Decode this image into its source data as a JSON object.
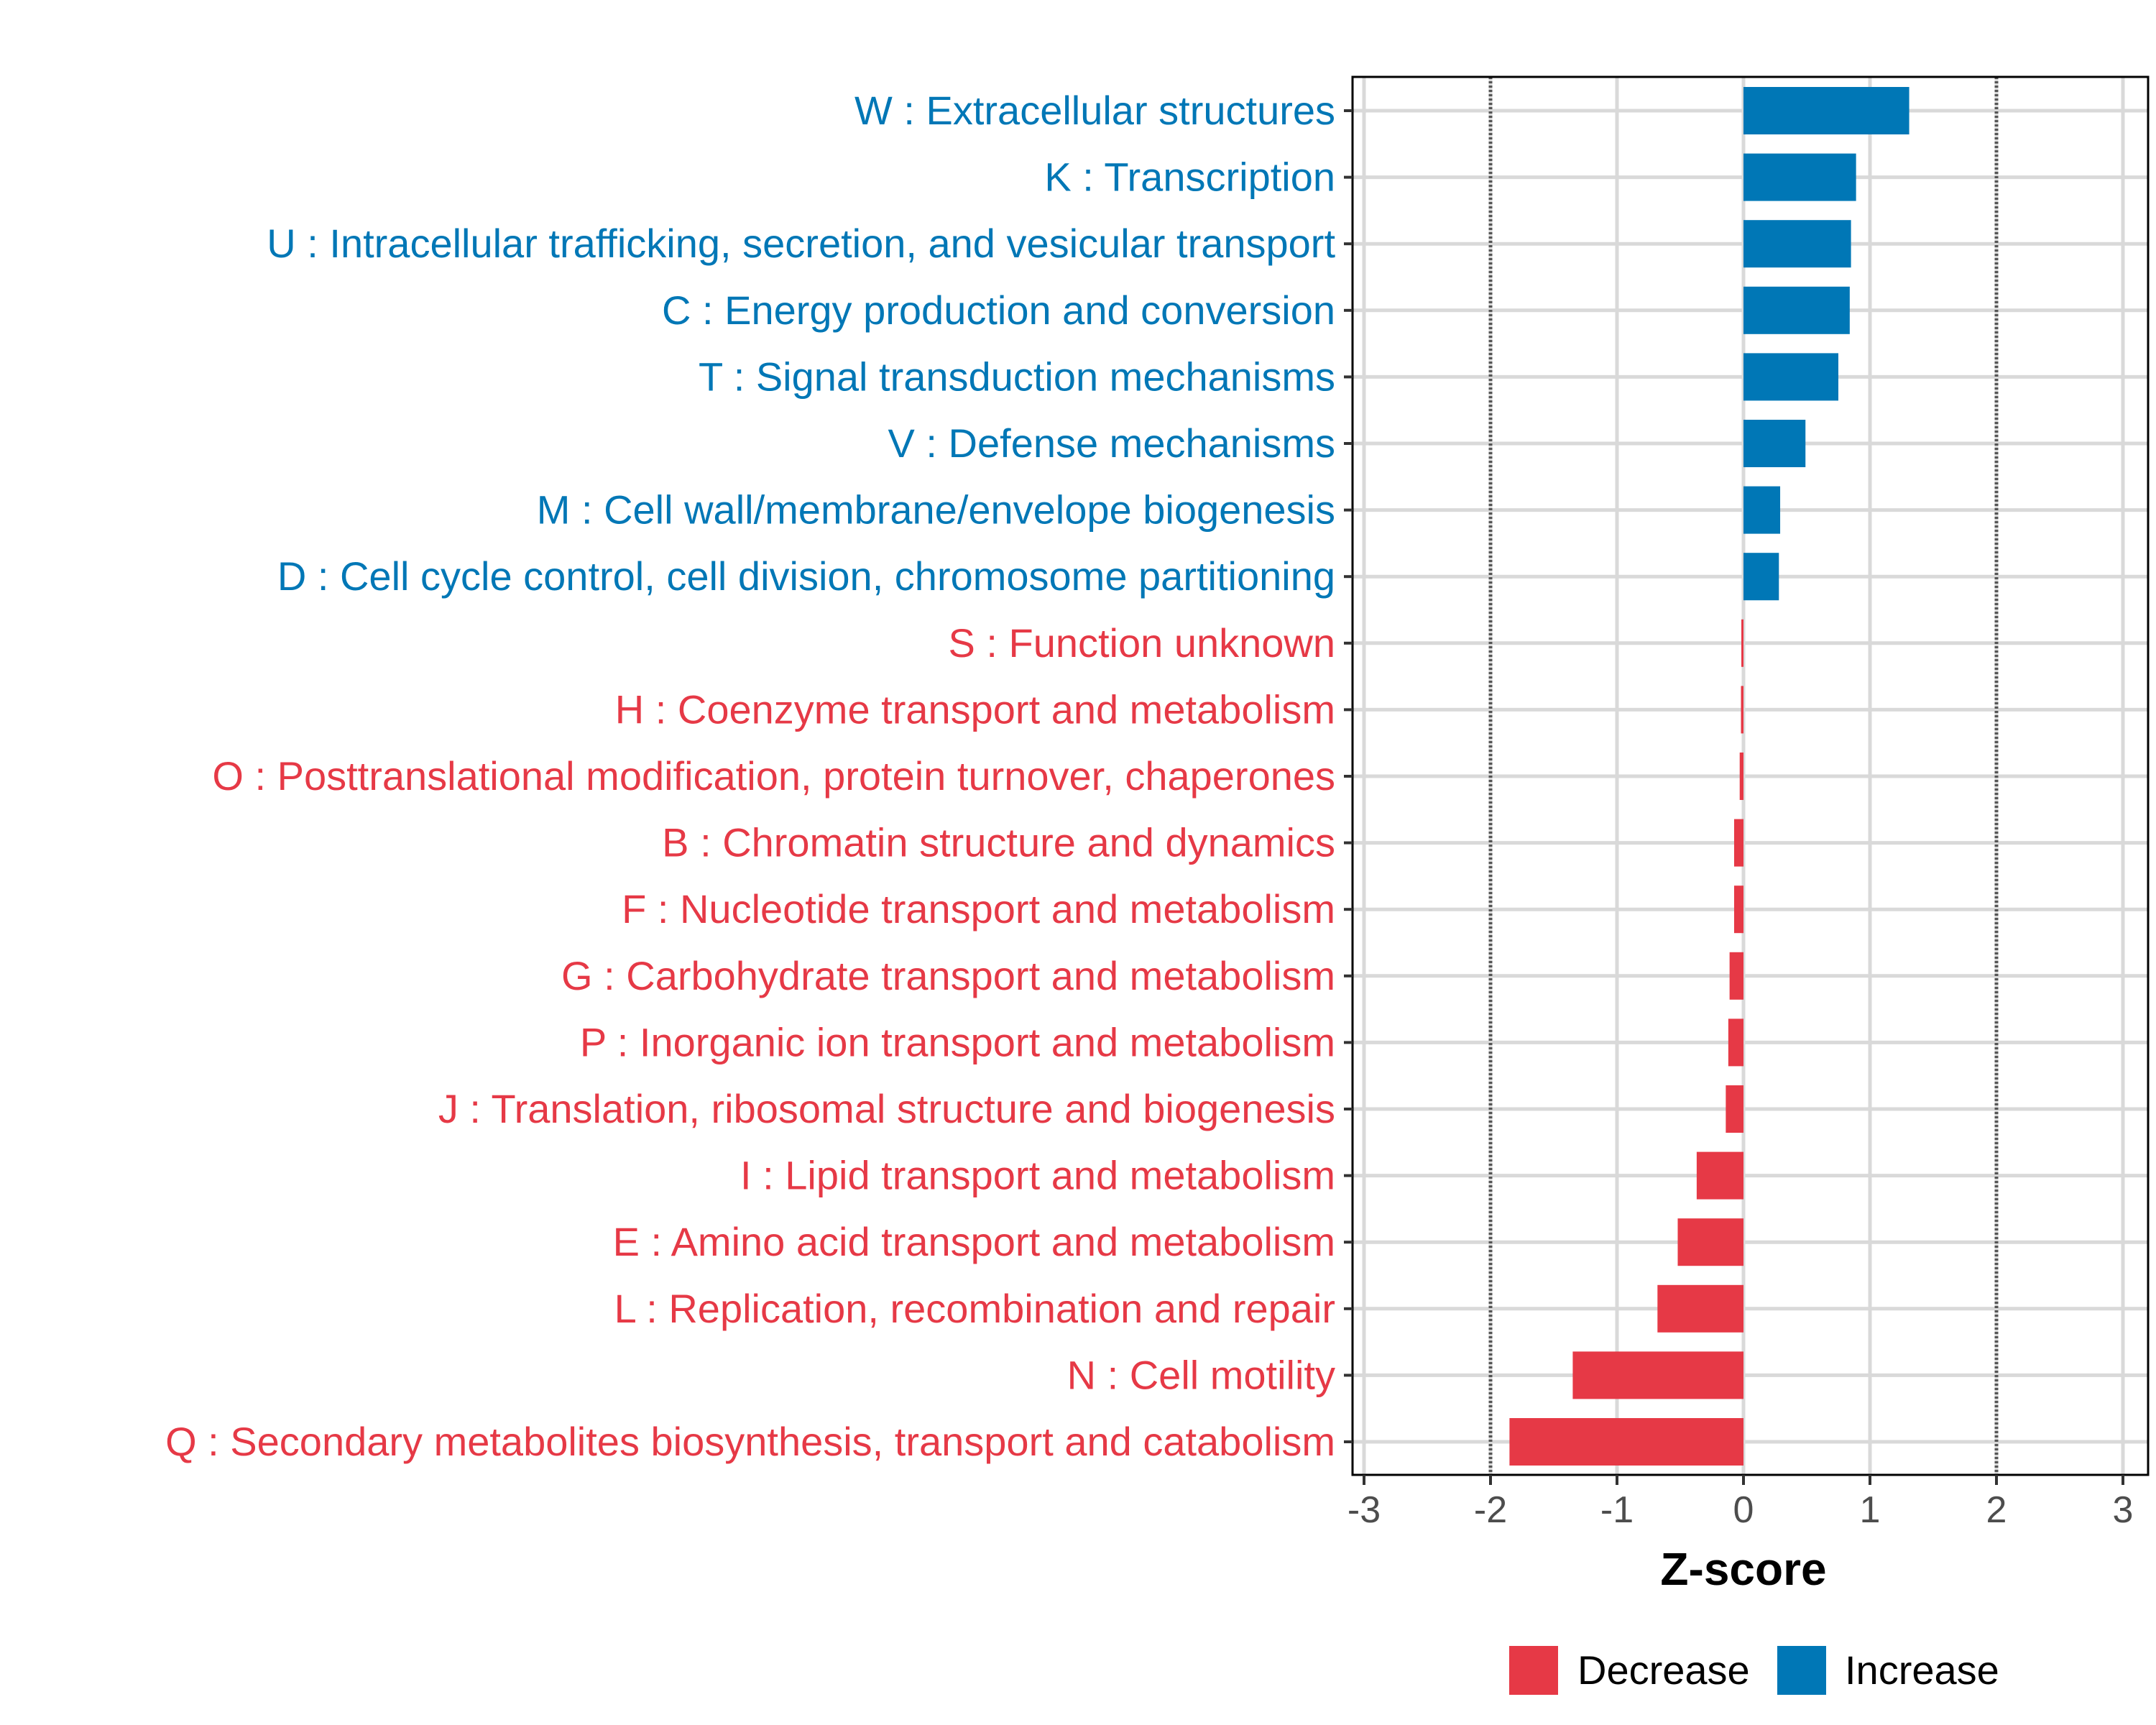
{
  "chart_data": {
    "type": "bar",
    "orientation": "horizontal",
    "title": "",
    "xlabel": "Z-score",
    "ylabel": "",
    "xlim": [
      -3.1,
      3.1
    ],
    "xticks": [
      -3,
      -2,
      -1,
      0,
      1,
      2,
      3
    ],
    "xtick_labels": [
      "-3",
      "-2",
      "-1",
      "0",
      "1",
      "2",
      "3"
    ],
    "reference_lines": [
      -2,
      2
    ],
    "grid": true,
    "legend_position": "bottom",
    "colors": {
      "Decrease": "#E63946",
      "Increase": "#0077B6"
    },
    "legend": [
      {
        "label": "Decrease",
        "color": "#E63946"
      },
      {
        "label": "Increase",
        "color": "#0077B6"
      }
    ],
    "categories": [
      "W : Extracellular structures",
      "K : Transcription",
      "U : Intracellular trafficking, secretion, and vesicular transport",
      "C : Energy production and conversion",
      "T : Signal transduction mechanisms",
      "V : Defense mechanisms",
      "M : Cell wall/membrane/envelope biogenesis",
      "D : Cell cycle control, cell division, chromosome partitioning",
      "S : Function unknown",
      "H : Coenzyme transport and metabolism",
      "O : Posttranslational modification, protein turnover, chaperones",
      "B : Chromatin structure and dynamics",
      "F : Nucleotide transport and metabolism",
      "G : Carbohydrate transport and metabolism",
      "P : Inorganic ion transport and metabolism",
      "J : Translation, ribosomal structure and biogenesis",
      "I : Lipid transport and metabolism",
      "E : Amino acid transport and metabolism",
      "L : Replication, recombination and repair",
      "N : Cell motility",
      "Q : Secondary metabolites biosynthesis, transport and catabolism"
    ],
    "values": [
      1.31,
      0.89,
      0.85,
      0.84,
      0.75,
      0.49,
      0.29,
      0.28,
      -0.017,
      -0.02,
      -0.03,
      -0.074,
      -0.074,
      -0.11,
      -0.12,
      -0.14,
      -0.37,
      -0.52,
      -0.68,
      -1.35,
      -1.85
    ],
    "groups": [
      "Increase",
      "Increase",
      "Increase",
      "Increase",
      "Increase",
      "Increase",
      "Increase",
      "Increase",
      "Decrease",
      "Decrease",
      "Decrease",
      "Decrease",
      "Decrease",
      "Decrease",
      "Decrease",
      "Decrease",
      "Decrease",
      "Decrease",
      "Decrease",
      "Decrease",
      "Decrease"
    ]
  }
}
